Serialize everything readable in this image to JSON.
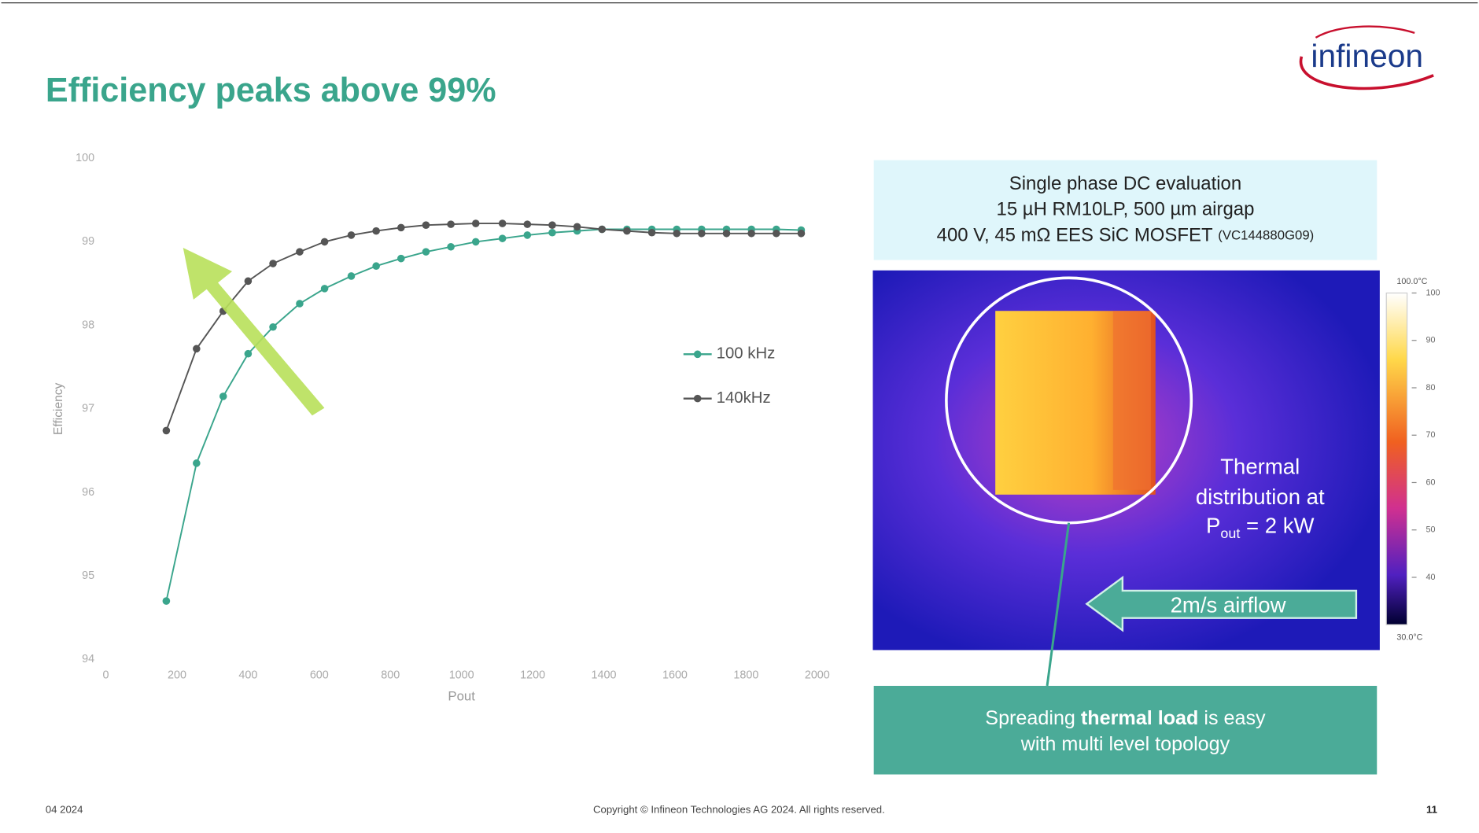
{
  "header": {
    "title": "Efficiency peaks above 99%",
    "logo": "infineon"
  },
  "chart_data": {
    "type": "line",
    "x_label": "Pout",
    "y_label": "Efficiency",
    "x": [
      170,
      255,
      330,
      400,
      470,
      545,
      615,
      690,
      760,
      830,
      900,
      970,
      1040,
      1115,
      1185,
      1255,
      1325,
      1395,
      1465,
      1535,
      1605,
      1675,
      1745,
      1815,
      1885,
      1955
    ],
    "series": [
      {
        "name": "100 kHz",
        "color": "#3aa58c",
        "values": [
          94.7,
          96.35,
          97.15,
          97.66,
          97.98,
          98.26,
          98.44,
          98.59,
          98.71,
          98.8,
          98.88,
          98.94,
          99.0,
          99.04,
          99.08,
          99.11,
          99.13,
          99.15,
          99.15,
          99.15,
          99.15,
          99.15,
          99.15,
          99.15,
          99.15,
          99.14
        ]
      },
      {
        "name": "140kHz",
        "color": "#555555",
        "values": [
          96.74,
          97.72,
          98.17,
          98.53,
          98.74,
          98.88,
          99.0,
          99.08,
          99.13,
          99.17,
          99.2,
          99.21,
          99.22,
          99.22,
          99.21,
          99.2,
          99.18,
          99.15,
          99.13,
          99.11,
          99.1,
          99.1,
          99.1,
          99.1,
          99.1,
          99.1
        ]
      }
    ],
    "xlim": [
      0,
      2000
    ],
    "xticks": [
      0,
      200,
      400,
      600,
      800,
      1000,
      1200,
      1400,
      1600,
      1800,
      2000
    ],
    "ylim": [
      94,
      100
    ],
    "yticks": [
      94,
      95,
      96,
      97,
      98,
      99,
      100
    ],
    "grid": false,
    "legend": "right"
  },
  "info_box": {
    "lines": [
      "Single phase DC evaluation",
      "15 µH RM10LP, 500 µm airgap",
      "400 V, 45 mΩ EES SiC MOSFET"
    ],
    "part": "(VC144880G09)"
  },
  "thermal": {
    "caption": [
      "Thermal",
      "distribution at"
    ],
    "p": "P",
    "sub": "out",
    "eq": " = 2 kW",
    "airflow": "2m/s airflow",
    "scale_top": "100.0°C",
    "scale_bottom": "30.0°C",
    "scale": [
      "100",
      "90",
      "80",
      "70",
      "60",
      "50",
      "40"
    ]
  },
  "callout": {
    "a": "Spreading ",
    "b": "thermal load",
    "c": " is easy",
    "line2": "with multi level topology"
  },
  "footer": {
    "date": "04 2024",
    "copyright": "Copyright © Infineon Technologies AG 2024. All rights reserved.",
    "page": "11"
  }
}
